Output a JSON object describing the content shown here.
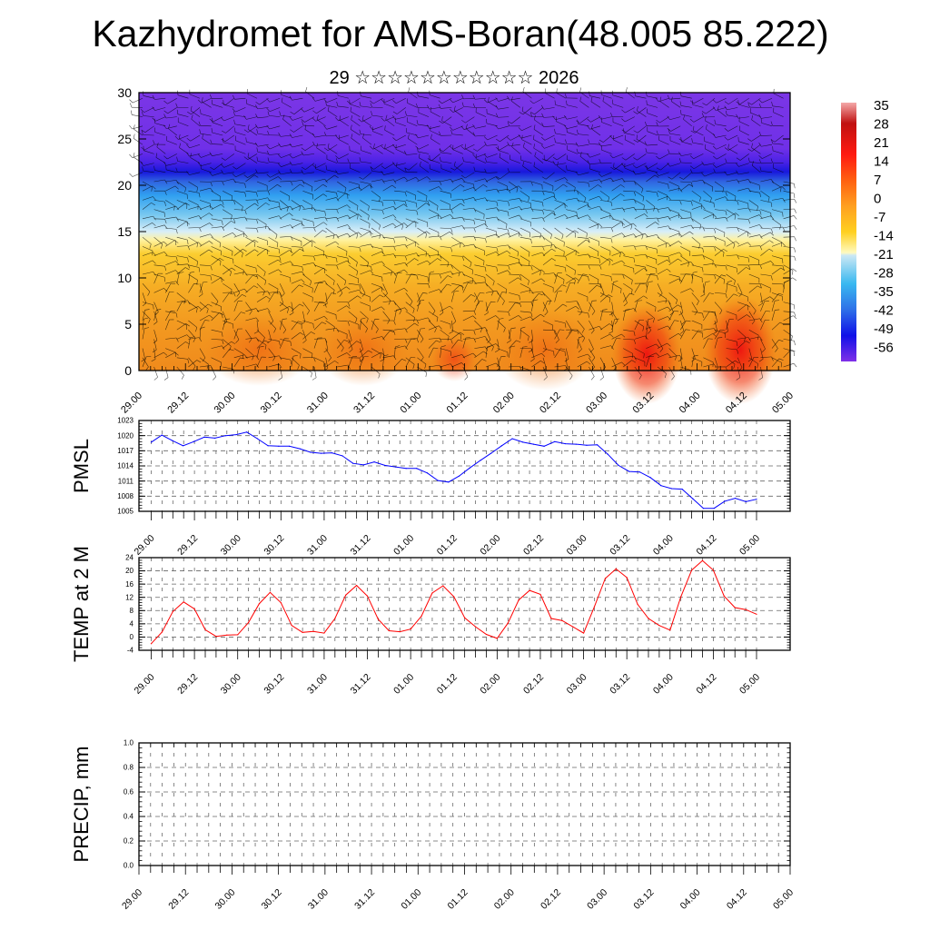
{
  "header": {
    "title": "Kazhydromet for AMS-Boran(48.005 85.222)",
    "subtitle": "29 ☆☆☆☆☆☆☆☆☆☆☆ 2026"
  },
  "colors": {
    "pmsl_line": "#0000ff",
    "temp_line": "#ff0000"
  },
  "chart_data": [
    {
      "type": "heatmap",
      "title": "",
      "ylabel": "",
      "ylim": [
        0,
        30
      ],
      "yticks": [
        "0",
        "5",
        "10",
        "15",
        "20",
        "25",
        "30"
      ],
      "xticks": [
        "29.00",
        "29.12",
        "30.00",
        "30.12",
        "31.00",
        "31.12",
        "01.00",
        "01.12",
        "02.00",
        "02.12",
        "03.00",
        "03.12",
        "04.00",
        "04.12",
        "05.00"
      ],
      "colorbar": {
        "labels": [
          "35",
          "28",
          "21",
          "14",
          "7",
          "0",
          "-7",
          "-14",
          "-21",
          "-28",
          "-35",
          "-42",
          "-49",
          "-56"
        ],
        "range": [
          -60,
          38
        ]
      },
      "overlay": "wind barbs"
    },
    {
      "type": "line",
      "ylabel": "PMSL",
      "ylim": [
        1005,
        1023
      ],
      "yticks": [
        "1005",
        "1008",
        "1011",
        "1014",
        "1017",
        "1020",
        "1023"
      ],
      "xticks": [
        "29.00",
        "29.12",
        "30.00",
        "30.12",
        "31.00",
        "31.12",
        "01.00",
        "01.12",
        "02.00",
        "02.12",
        "03.00",
        "03.12",
        "04.00",
        "04.12",
        "05.00"
      ],
      "x_step_hours": 3,
      "values": [
        1018.7,
        1020.1,
        1019.0,
        1018.0,
        1018.8,
        1019.7,
        1019.5,
        1020.0,
        1020.2,
        1020.7,
        1019.4,
        1018.0,
        1017.9,
        1017.9,
        1017.4,
        1016.7,
        1016.5,
        1016.6,
        1016.0,
        1014.5,
        1014.2,
        1014.8,
        1014.1,
        1013.8,
        1013.5,
        1013.5,
        1012.6,
        1011.1,
        1010.8,
        1012.0,
        1013.6,
        1015.1,
        1016.5,
        1018.0,
        1019.4,
        1018.7,
        1018.3,
        1017.9,
        1018.8,
        1018.4,
        1018.3,
        1018.1,
        1018.2,
        1016.3,
        1014.1,
        1012.9,
        1012.8,
        1011.7,
        1010.1,
        1009.5,
        1009.4,
        1007.5,
        1005.6,
        1005.6,
        1007.0,
        1007.6,
        1006.9,
        1007.4
      ]
    },
    {
      "type": "line",
      "ylabel": "TEMP at 2 M",
      "ylim": [
        -4,
        24
      ],
      "yticks": [
        "-4",
        "0",
        "4",
        "8",
        "12",
        "16",
        "20",
        "24"
      ],
      "xticks": [
        "29.00",
        "29.12",
        "30.00",
        "30.12",
        "31.00",
        "31.12",
        "01.00",
        "01.12",
        "02.00",
        "02.12",
        "03.00",
        "03.12",
        "04.00",
        "04.12",
        "05.00"
      ],
      "x_step_hours": 3,
      "values": [
        -2.0,
        1.5,
        7.7,
        10.6,
        8.5,
        2.2,
        0.2,
        0.6,
        0.7,
        4.4,
        10.1,
        13.5,
        10.4,
        3.5,
        1.4,
        1.7,
        1.2,
        5.6,
        12.7,
        15.6,
        12.4,
        5.4,
        1.9,
        1.6,
        2.4,
        6.3,
        13.3,
        15.5,
        12.2,
        5.8,
        3.1,
        0.8,
        -0.4,
        4.2,
        11.2,
        14.1,
        12.9,
        5.6,
        5.0,
        3.1,
        1.2,
        9.2,
        17.7,
        20.6,
        18.0,
        9.9,
        5.6,
        3.5,
        2.1,
        12.2,
        20.2,
        23.1,
        20.2,
        12.4,
        8.9,
        8.3,
        6.9
      ]
    },
    {
      "type": "line",
      "ylabel": "PRECIP, mm",
      "ylim": [
        0,
        1.0
      ],
      "yticks": [
        "0.0",
        "0.2",
        "0.4",
        "0.6",
        "0.8",
        "1.0"
      ],
      "xticks": [
        "29.00",
        "29.12",
        "30.00",
        "30.12",
        "31.00",
        "31.12",
        "01.00",
        "01.12",
        "02.00",
        "02.12",
        "03.00",
        "03.12",
        "04.00",
        "04.12",
        "05.00"
      ],
      "values": []
    }
  ]
}
